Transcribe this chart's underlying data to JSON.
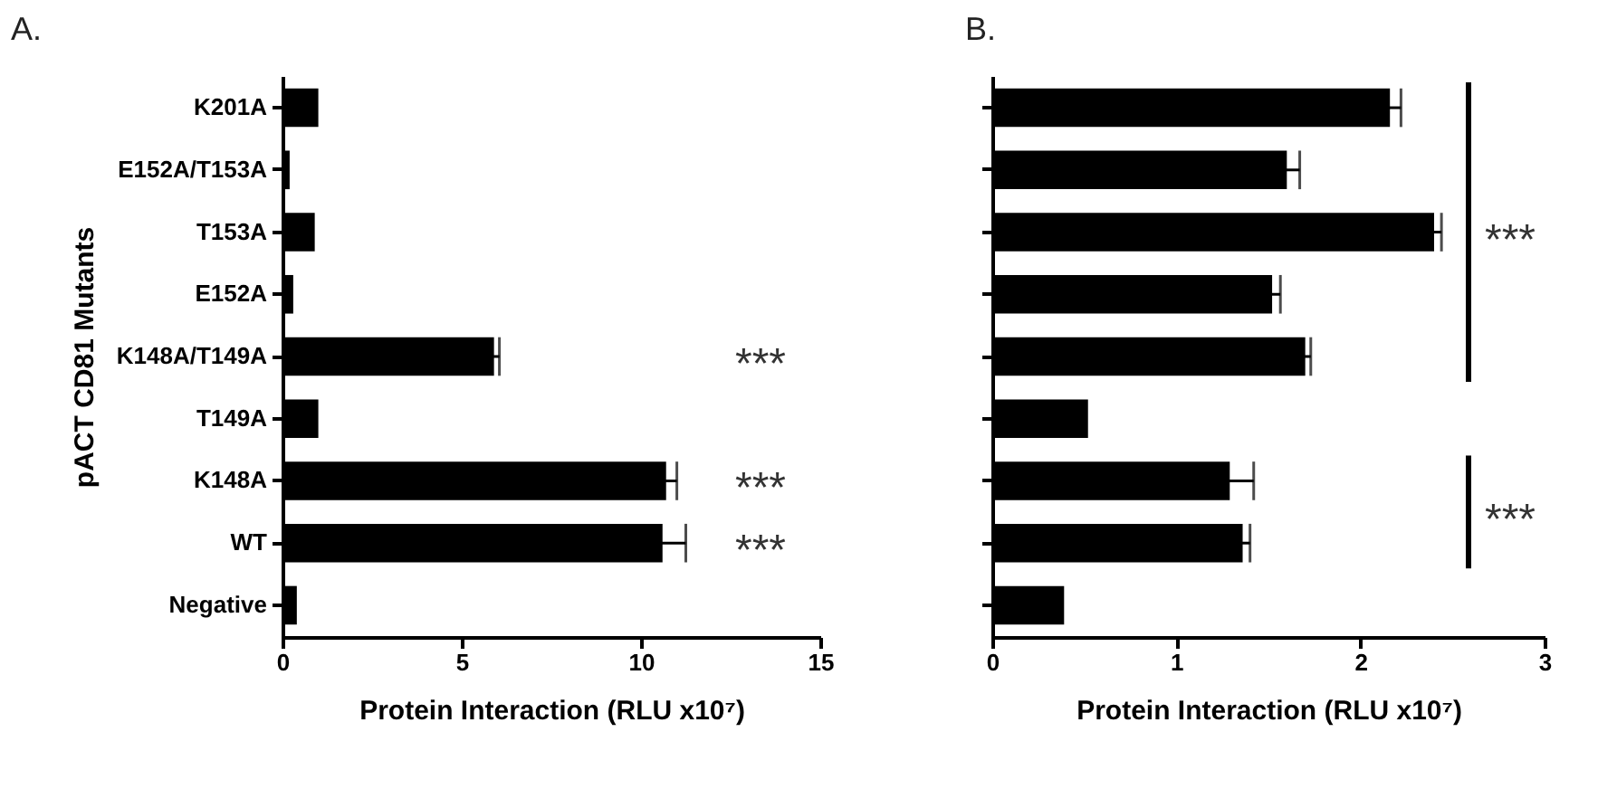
{
  "chart_data": [
    {
      "type": "bar",
      "title": "A.",
      "orientation": "horizontal",
      "ylabel": "pACT CD81 Mutants",
      "xlabel": "Protein Interaction (RLU x10⁷)",
      "categories": [
        "K201A",
        "E152A/T153A",
        "T153A",
        "E152A",
        "K148A/T149A",
        "T149A",
        "K148A",
        "WT",
        "Negative"
      ],
      "values": [
        1.0,
        0.2,
        0.9,
        0.3,
        5.9,
        1.0,
        10.7,
        10.6,
        0.4
      ],
      "errors": [
        null,
        null,
        null,
        null,
        0.15,
        null,
        0.3,
        0.65,
        null
      ],
      "color": "#000000",
      "xlim": [
        0,
        15
      ],
      "xticks": [
        0,
        5,
        10,
        15
      ],
      "grid": false,
      "annotations": [
        "***",
        "***",
        "***"
      ]
    },
    {
      "type": "bar",
      "title": "B.",
      "orientation": "horizontal",
      "xlabel": "Protein Interaction (RLU x10⁷)",
      "categories": [
        null,
        null,
        null,
        null,
        null,
        null,
        null,
        null,
        null
      ],
      "values": [
        2.16,
        1.6,
        2.4,
        1.52,
        1.7,
        0.52,
        1.29,
        1.36,
        0.39
      ],
      "errors": [
        0.06,
        0.07,
        0.04,
        0.045,
        0.03,
        null,
        0.13,
        0.04,
        null
      ],
      "color": "#000000",
      "xlim": [
        0,
        3
      ],
      "xticks": [
        0,
        1,
        2,
        3
      ],
      "grid": false,
      "tick_labels": "x",
      "annotations": [
        "***",
        "***"
      ]
    }
  ]
}
